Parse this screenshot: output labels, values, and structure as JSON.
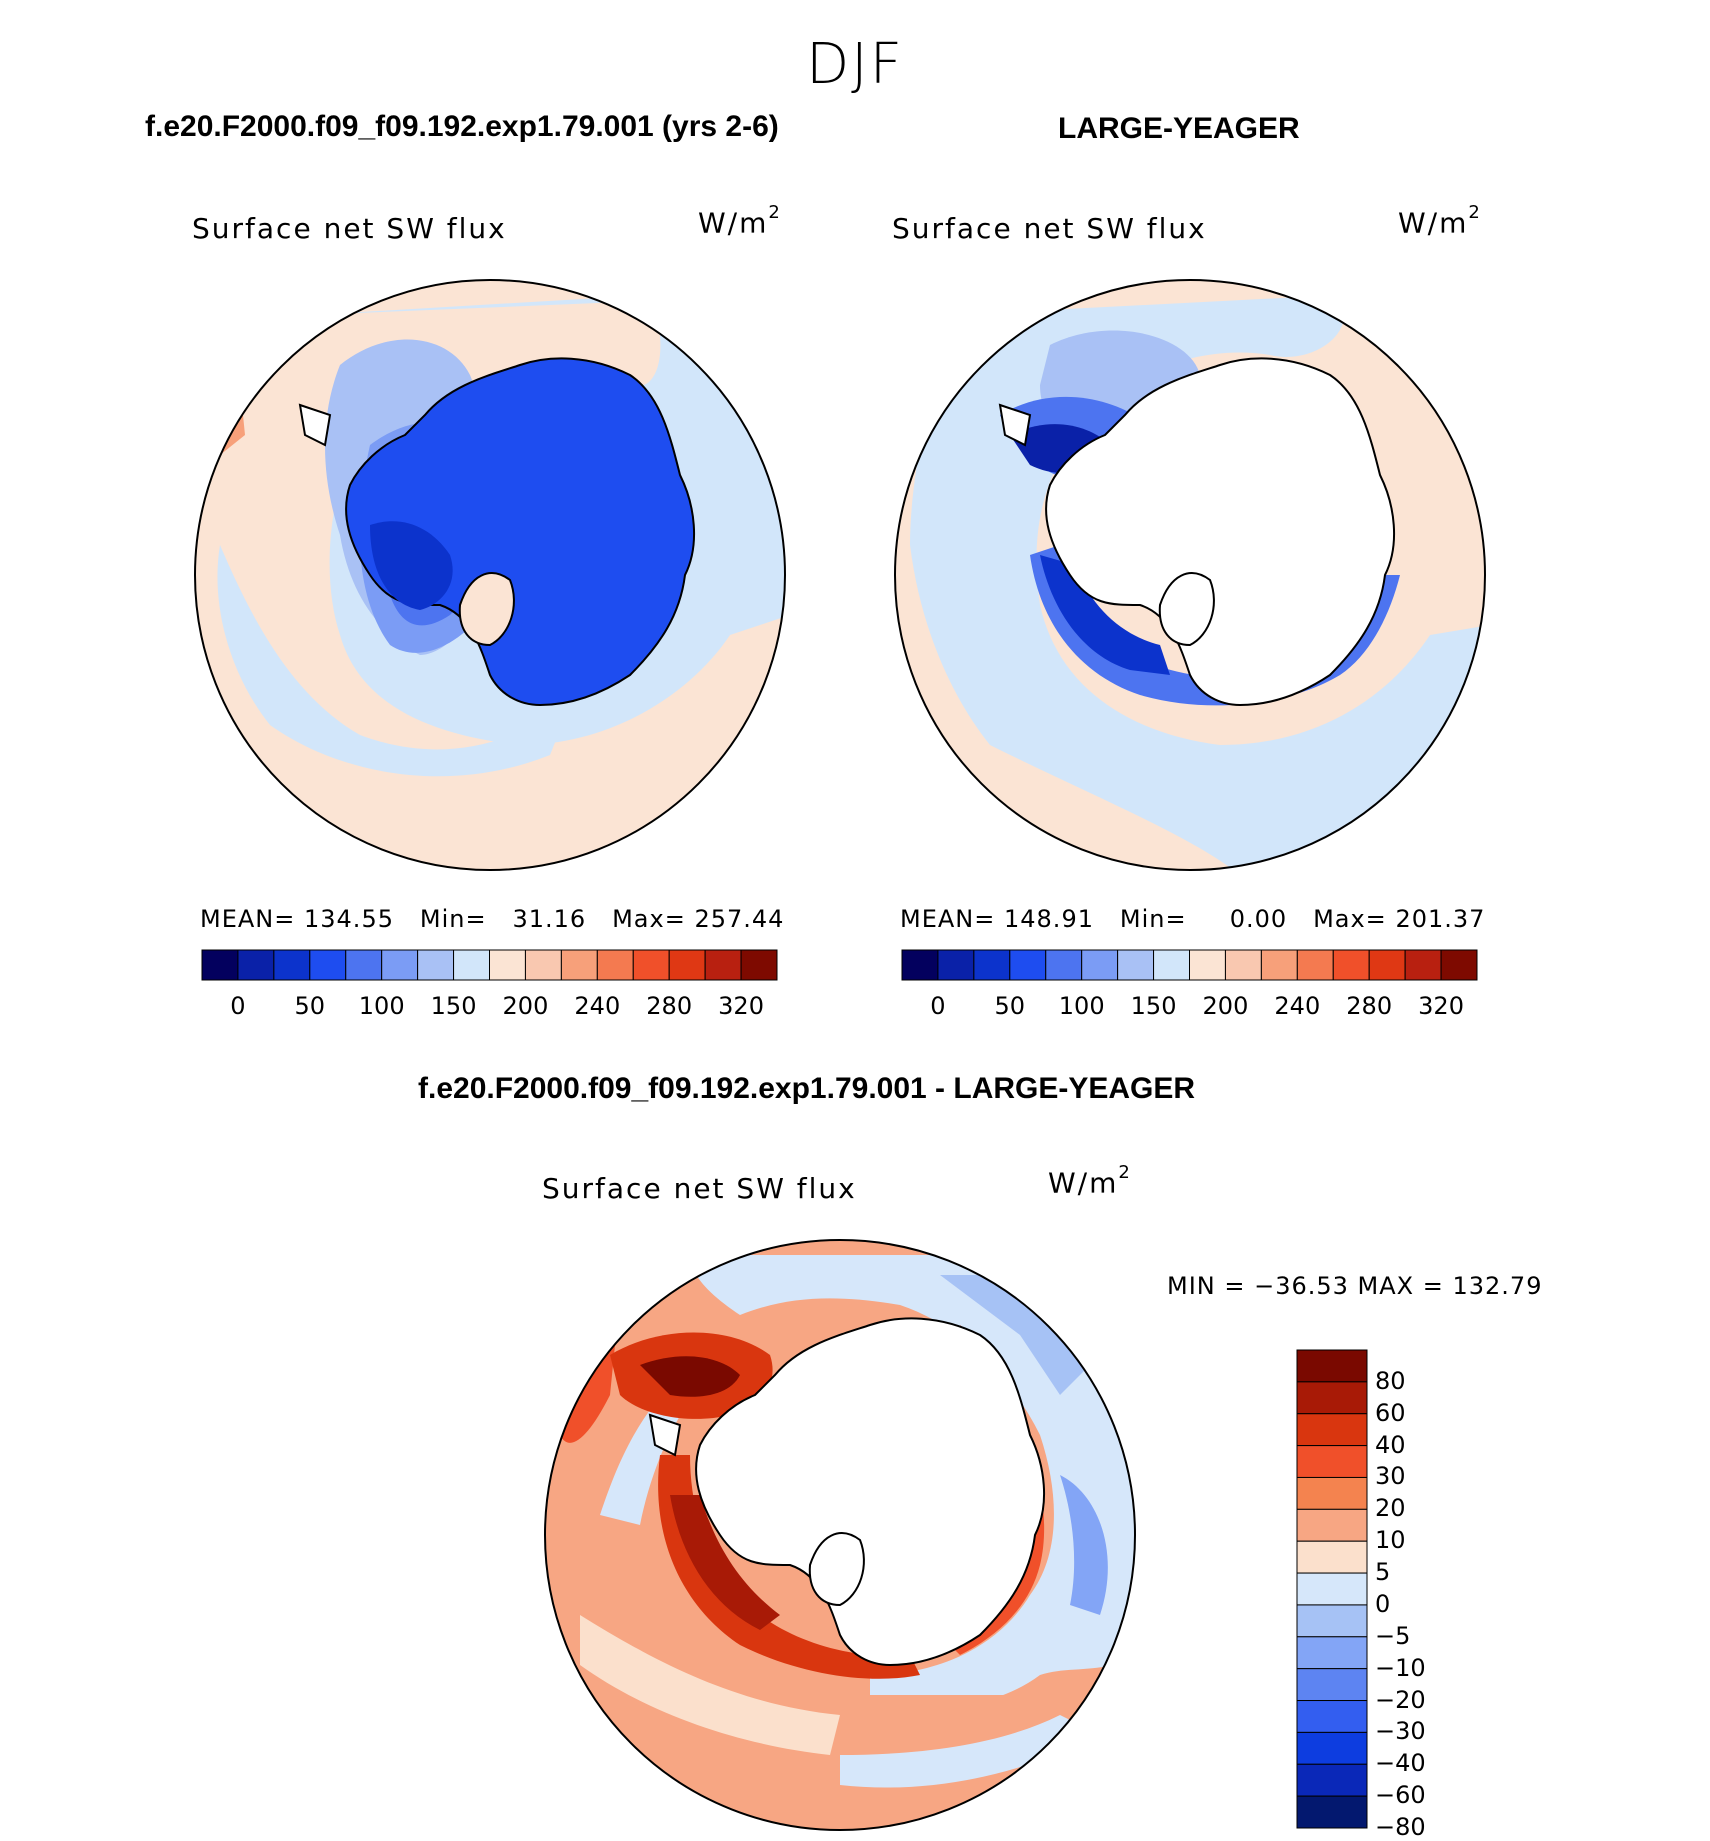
{
  "season": "DJF",
  "panels": [
    {
      "id": "test",
      "title": "f.e20.F2000.f09_f09.192.exp1.79.001 (yrs 2-6)",
      "variable": "Surface net SW flux",
      "units_base": "W/m",
      "units_sup": "2",
      "mean_label": "MEAN=",
      "mean": "134.55",
      "min_label": "Min=",
      "min": "31.16",
      "max_label": "Max=",
      "max": "257.44"
    },
    {
      "id": "obs",
      "title": "LARGE-YEAGER",
      "variable": "Surface net SW flux",
      "units_base": "W/m",
      "units_sup": "2",
      "mean_label": "MEAN=",
      "mean": "148.91",
      "min_label": "Min=",
      "min": "0.00",
      "max_label": "Max=",
      "max": "201.37"
    },
    {
      "id": "diff",
      "title": "f.e20.F2000.f09_f09.192.exp1.79.001 - LARGE-YEAGER",
      "variable": "Surface net SW flux",
      "units_base": "W/m",
      "units_sup": "2",
      "minmax": "MIN = −36.53 MAX = 132.79"
    }
  ],
  "colorbar_abs": {
    "colors": [
      "#03005e",
      "#0a21a8",
      "#0c33cc",
      "#1e4df0",
      "#4d74f0",
      "#7b9cf5",
      "#a9c1f5",
      "#d2e6fa",
      "#fbe4d4",
      "#f9c8b0",
      "#f7a07a",
      "#f47a50",
      "#f0502a",
      "#df3814",
      "#b82010",
      "#7e0a00"
    ],
    "labels": [
      "0",
      "50",
      "100",
      "150",
      "200",
      "240",
      "280",
      "320"
    ]
  },
  "colorbar_diff": {
    "colors": [
      "#7a0900",
      "#a81a06",
      "#d9360f",
      "#f0502a",
      "#f4834f",
      "#f7a683",
      "#fbe0cc",
      "#d6e7fa",
      "#a6c2f5",
      "#83a5f6",
      "#5d84f2",
      "#335ef0",
      "#0d3de0",
      "#0a28b8",
      "#03186f"
    ],
    "labels": [
      "80",
      "60",
      "40",
      "30",
      "20",
      "10",
      "5",
      "0",
      "−5",
      "−10",
      "−20",
      "−30",
      "−40",
      "−60",
      "−80"
    ]
  }
}
